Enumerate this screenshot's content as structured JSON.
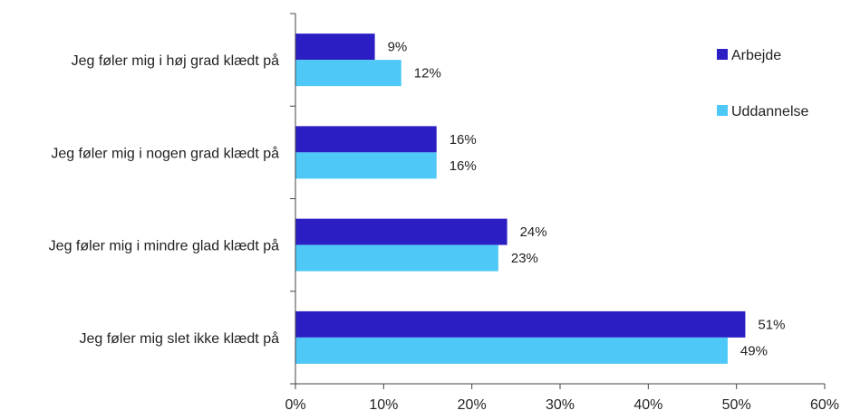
{
  "chart_data": {
    "type": "bar",
    "orientation": "horizontal",
    "categories": [
      "Jeg føler mig i høj grad klædt på",
      "Jeg føler mig i nogen grad klædt på",
      "Jeg føler mig i mindre glad klædt på",
      "Jeg føler mig slet ikke klædt på"
    ],
    "series": [
      {
        "name": "Arbejde",
        "color": "#2b1fc4",
        "values": [
          9,
          16,
          24,
          51
        ],
        "labels": [
          "9%",
          "16%",
          "24%",
          "51%"
        ]
      },
      {
        "name": "Uddannelse",
        "color": "#4dc8f7",
        "values": [
          12,
          16,
          23,
          49
        ],
        "labels": [
          "12%",
          "16%",
          "23%",
          "49%"
        ]
      }
    ],
    "xlim": [
      0,
      60
    ],
    "xticks": [
      0,
      10,
      20,
      30,
      40,
      50,
      60
    ],
    "xtick_labels": [
      "0%",
      "10%",
      "20%",
      "30%",
      "40%",
      "50%",
      "60%"
    ],
    "legend": "right",
    "grid": false
  }
}
